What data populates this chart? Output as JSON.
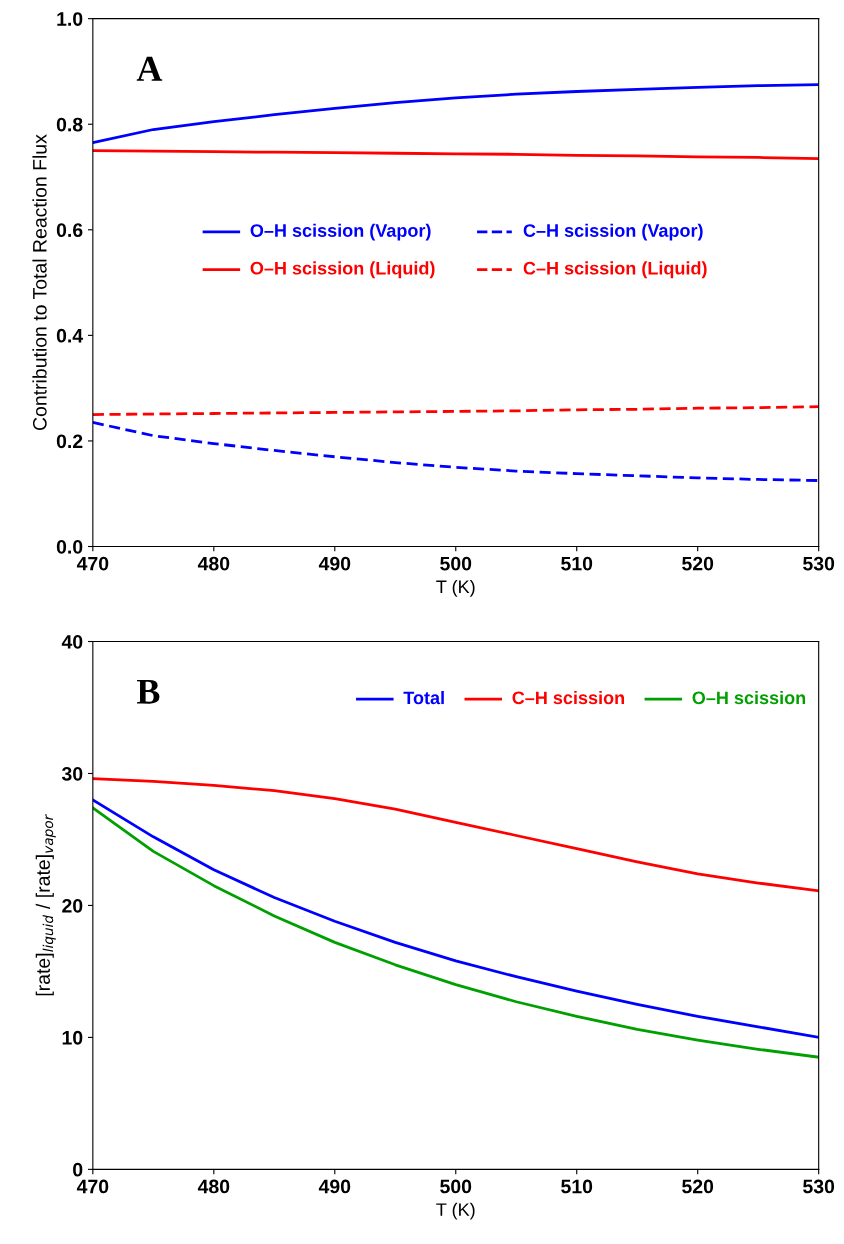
{
  "chart_data": [
    {
      "type": "line",
      "xlabel": "T (K)",
      "ylabel": "Contribution to Total Reaction Flux",
      "annotations": [
        "A"
      ],
      "x": [
        470,
        475,
        480,
        485,
        490,
        495,
        500,
        505,
        510,
        515,
        520,
        525,
        530
      ],
      "xlim": [
        470,
        530
      ],
      "xticks": [
        470,
        480,
        490,
        500,
        510,
        520,
        530
      ],
      "ylim": [
        0,
        1
      ],
      "yticks": [
        {
          "value": 0,
          "label": "0.0"
        },
        {
          "value": 0.2,
          "label": "0.2"
        },
        {
          "value": 0.4,
          "label": "0.4"
        },
        {
          "value": 0.6,
          "label": "0.6"
        },
        {
          "value": 0.8,
          "label": "0.8"
        },
        {
          "value": 1,
          "label": "1.0"
        }
      ],
      "grid": false,
      "legend": "center",
      "marker": "none",
      "series": [
        {
          "name": "O–H scission (Vapor)",
          "color": "#0000ff",
          "line_style": "solid",
          "values": [
            0.765,
            0.79,
            0.805,
            0.818,
            0.83,
            0.841,
            0.85,
            0.857,
            0.862,
            0.866,
            0.87,
            0.873,
            0.875
          ]
        },
        {
          "name": "O–H scission (Liquid)",
          "color": "#ff0000",
          "line_style": "solid",
          "values": [
            0.75,
            0.749,
            0.748,
            0.747,
            0.746,
            0.745,
            0.744,
            0.743,
            0.741,
            0.74,
            0.738,
            0.737,
            0.735
          ]
        },
        {
          "name": "C–H scission (Vapor)",
          "color": "#0000ff",
          "line_style": "dashed",
          "values": [
            0.235,
            0.21,
            0.195,
            0.182,
            0.17,
            0.159,
            0.15,
            0.143,
            0.138,
            0.134,
            0.13,
            0.127,
            0.125
          ]
        },
        {
          "name": "C–H scission (Liquid)",
          "color": "#ff0000",
          "line_style": "dashed",
          "values": [
            0.25,
            0.251,
            0.252,
            0.253,
            0.254,
            0.255,
            0.256,
            0.257,
            0.259,
            0.26,
            0.262,
            0.263,
            0.265
          ]
        }
      ]
    },
    {
      "type": "line",
      "xlabel": "T (K)",
      "ylabel": "[rate]$_{liquid}$ / [rate]$_{vapor}$",
      "annotations": [
        "B"
      ],
      "x": [
        470,
        475,
        480,
        485,
        490,
        495,
        500,
        505,
        510,
        515,
        520,
        525,
        530
      ],
      "xlim": [
        470,
        530
      ],
      "xticks": [
        470,
        480,
        490,
        500,
        510,
        520,
        530
      ],
      "ylim": [
        0,
        40
      ],
      "yticks": [
        0,
        10,
        20,
        30,
        40
      ],
      "grid": false,
      "legend": "top right",
      "marker": "none",
      "series": [
        {
          "name": "Total",
          "color": "#0000ff",
          "line_style": "solid",
          "values": [
            28,
            25.2,
            22.7,
            20.6,
            18.8,
            17.2,
            15.8,
            14.6,
            13.5,
            12.5,
            11.6,
            10.8,
            10.0
          ]
        },
        {
          "name": "C–H scission",
          "color": "#ff0000",
          "line_style": "solid",
          "values": [
            29.6,
            29.4,
            29.1,
            28.7,
            28.1,
            27.3,
            26.3,
            25.3,
            24.3,
            23.3,
            22.4,
            21.7,
            21.1
          ]
        },
        {
          "name": "O–H scission",
          "color": "#00a000",
          "line_style": "solid",
          "values": [
            27.4,
            24.1,
            21.5,
            19.2,
            17.2,
            15.5,
            14.0,
            12.7,
            11.6,
            10.6,
            9.8,
            9.1,
            8.5
          ]
        }
      ]
    }
  ]
}
